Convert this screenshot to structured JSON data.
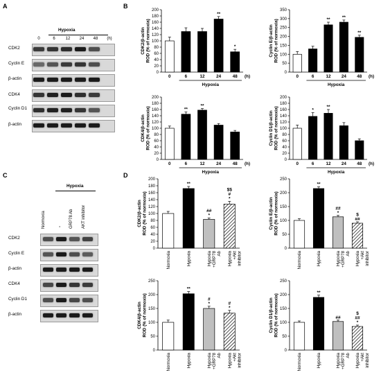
{
  "figure": {
    "panels": {
      "a": "A",
      "b": "B",
      "c": "C",
      "d": "D"
    }
  },
  "panel_a": {
    "group_label": "Hypoxia",
    "unit": "(h)",
    "lanes": [
      "0",
      "6",
      "12",
      "24",
      "48"
    ],
    "rows": [
      "CDK2",
      "Cyclin E",
      "β-actin",
      "CDK4",
      "Cyclin D1",
      "β-actin"
    ]
  },
  "panel_c": {
    "group_label": "Hypoxia",
    "lanes": [
      "Normoxia",
      "-",
      "GRP78 Ab",
      "AKT inhibitor"
    ],
    "rows": [
      "CDK2",
      "Cyclin E",
      "β-actin",
      "CDK4",
      "Cyclin D1",
      "β-actin"
    ]
  },
  "colors": {
    "black": "#000000",
    "white": "#ffffff",
    "gray": "#bfbfbf"
  },
  "chart_data": [
    {
      "id": "b1",
      "type": "bar",
      "ylabel": [
        "CDK2/β-actin",
        "ROD (% of normoxia)"
      ],
      "ylim": [
        0,
        200
      ],
      "yticks": [
        0,
        20,
        40,
        60,
        80,
        100,
        120,
        140,
        160,
        180,
        200
      ],
      "categories": [
        "0",
        "6",
        "12",
        "24",
        "48"
      ],
      "unit": "(h)",
      "group_label": "Hypoxia",
      "values": [
        100,
        130,
        130,
        170,
        65
      ],
      "errors": [
        12,
        12,
        10,
        8,
        8
      ],
      "fills": [
        "white",
        "black",
        "black",
        "black",
        "black"
      ],
      "sig": [
        "",
        "",
        "",
        "**",
        "*"
      ]
    },
    {
      "id": "b2",
      "type": "bar",
      "ylabel": [
        "Cyclin E/β-actin",
        "ROD (% of normoxia)"
      ],
      "ylim": [
        0,
        350
      ],
      "yticks": [
        0,
        50,
        100,
        150,
        200,
        250,
        300,
        350
      ],
      "categories": [
        "0",
        "6",
        "12",
        "24",
        "48"
      ],
      "unit": "(h)",
      "group_label": "Hypoxia",
      "values": [
        100,
        130,
        265,
        280,
        195
      ],
      "errors": [
        15,
        15,
        15,
        12,
        12
      ],
      "fills": [
        "white",
        "black",
        "black",
        "black",
        "black"
      ],
      "sig": [
        "",
        "",
        "**",
        "**",
        "**"
      ]
    },
    {
      "id": "b3",
      "type": "bar",
      "ylabel": [
        "CDK4/β-actin",
        "ROD (% of normoxia)"
      ],
      "ylim": [
        0,
        200
      ],
      "yticks": [
        0,
        20,
        40,
        60,
        80,
        100,
        120,
        140,
        160,
        180,
        200
      ],
      "categories": [
        "0",
        "6",
        "12",
        "24",
        "48"
      ],
      "unit": "(h)",
      "group_label": "Hypoxia",
      "values": [
        100,
        145,
        158,
        110,
        88
      ],
      "errors": [
        7,
        7,
        5,
        5,
        5
      ],
      "fills": [
        "white",
        "black",
        "black",
        "black",
        "black"
      ],
      "sig": [
        "",
        "**",
        "**",
        "",
        ""
      ]
    },
    {
      "id": "b4",
      "type": "bar",
      "ylabel": [
        "Cyclin D1/β-actin",
        "ROD (% of normoxia)"
      ],
      "ylim": [
        0,
        200
      ],
      "yticks": [
        0,
        20,
        40,
        60,
        80,
        100,
        120,
        140,
        160,
        180,
        200
      ],
      "categories": [
        "0",
        "6",
        "12",
        "24",
        "48"
      ],
      "unit": "(h)",
      "group_label": "Hypoxia",
      "values": [
        100,
        138,
        148,
        108,
        60
      ],
      "errors": [
        10,
        12,
        12,
        10,
        6
      ],
      "fills": [
        "white",
        "black",
        "black",
        "black",
        "black"
      ],
      "sig": [
        "",
        "*",
        "**",
        "",
        ""
      ]
    },
    {
      "id": "d1",
      "type": "bar",
      "ylabel": [
        "CDK2/β-actin",
        "ROD (% of normoxia)"
      ],
      "ylim": [
        0,
        200
      ],
      "yticks": [
        0,
        20,
        40,
        60,
        80,
        100,
        120,
        140,
        160,
        180,
        200
      ],
      "categories": [
        "Normoxia",
        "Hypoxia",
        "Hypoxia +GRP78 Ab",
        "Hypoxia +Akt inhibitor"
      ],
      "values": [
        100,
        172,
        83,
        127
      ],
      "errors": [
        6,
        6,
        4,
        8
      ],
      "fills": [
        "white",
        "black",
        "gray",
        "hatch"
      ],
      "sig": [
        "",
        "**",
        "##\n*",
        "$$\n#\n*"
      ]
    },
    {
      "id": "d2",
      "type": "bar",
      "ylabel": [
        "Cyclin E/β-actin",
        "ROD (% of normoxia)"
      ],
      "ylim": [
        0,
        250
      ],
      "yticks": [
        0,
        50,
        100,
        150,
        200,
        250
      ],
      "categories": [
        "Normoxia",
        "Hypoxia",
        "Hypoxia +GRP78 Ab",
        "Hypoxia +Akt inhibitor"
      ],
      "values": [
        100,
        215,
        113,
        90
      ],
      "errors": [
        6,
        6,
        5,
        5
      ],
      "fills": [
        "white",
        "black",
        "gray",
        "hatch"
      ],
      "sig": [
        "",
        "**",
        "##\n*",
        "$\n##"
      ]
    },
    {
      "id": "d3",
      "type": "bar",
      "ylabel": [
        "CDK4/β-actin",
        "ROD (% of normoxia)"
      ],
      "ylim": [
        0,
        250
      ],
      "yticks": [
        0,
        50,
        100,
        150,
        200,
        250
      ],
      "categories": [
        "Normoxia",
        "Hypoxia",
        "Hypoxia +GRP78 Ab",
        "Hypoxia +Akt inhibitor"
      ],
      "values": [
        100,
        203,
        150,
        133
      ],
      "errors": [
        8,
        8,
        8,
        10
      ],
      "fills": [
        "white",
        "black",
        "gray",
        "hatch"
      ],
      "sig": [
        "",
        "**",
        "#\n*",
        "#\n*"
      ]
    },
    {
      "id": "d4",
      "type": "bar",
      "ylabel": [
        "Cyclin D1/β-actin",
        "ROD (% of normoxia)"
      ],
      "ylim": [
        0,
        250
      ],
      "yticks": [
        0,
        50,
        100,
        150,
        200,
        250
      ],
      "categories": [
        "Normoxia",
        "Hypoxia",
        "Hypoxia +GRP78 Ab",
        "Hypoxia +Akt inhibitor"
      ],
      "values": [
        100,
        190,
        103,
        85
      ],
      "errors": [
        5,
        8,
        5,
        5
      ],
      "fills": [
        "white",
        "black",
        "gray",
        "hatch"
      ],
      "sig": [
        "",
        "**",
        "##",
        "$\n##\n*"
      ]
    }
  ]
}
